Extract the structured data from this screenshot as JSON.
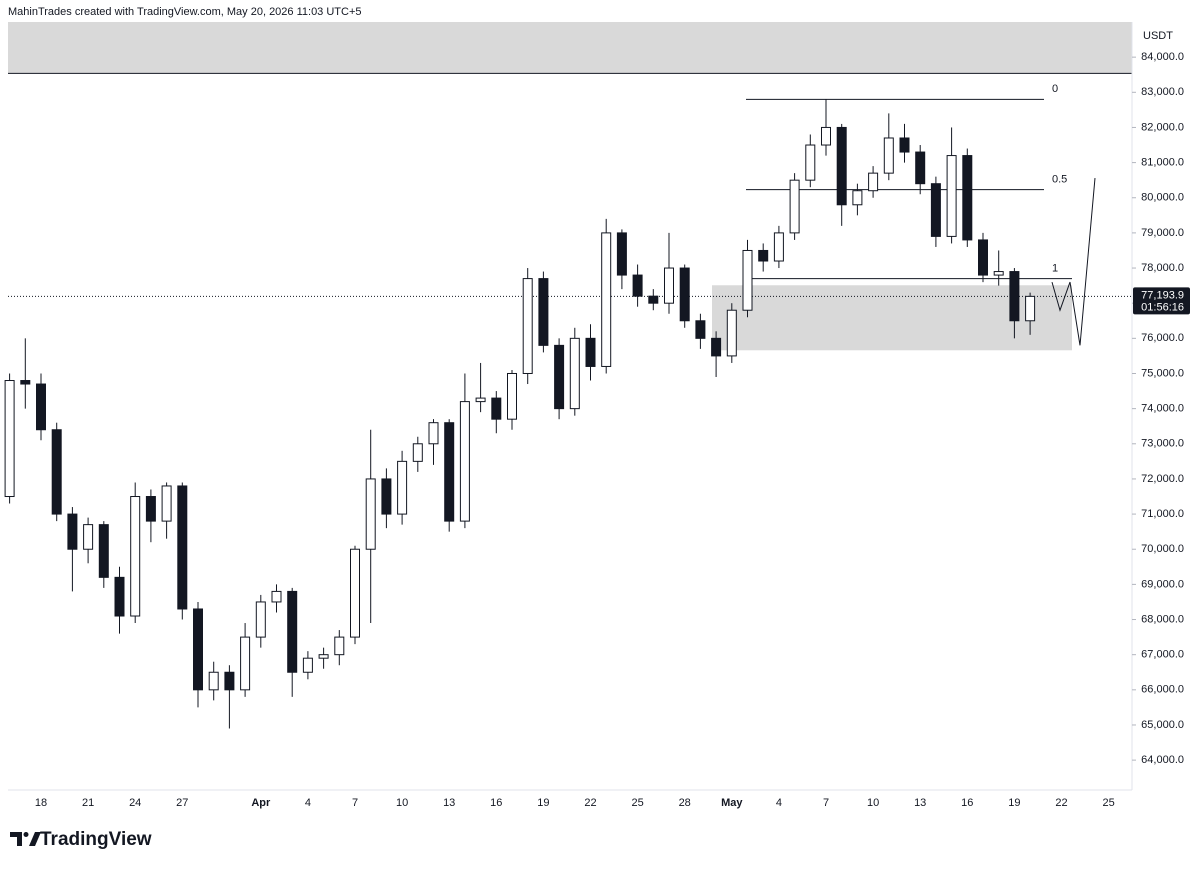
{
  "header": "MahinTrades created with TradingView.com, May 20, 2026 11:03 UTC+5",
  "footer": {
    "logo": "TradingView"
  },
  "chart_data": {
    "type": "candlestick",
    "y_axis_label": "USDT",
    "ylim": [
      63150,
      85000
    ],
    "yticks": [
      {
        "value": 64000,
        "label": "64,000.0"
      },
      {
        "value": 65000,
        "label": "65,000.0"
      },
      {
        "value": 66000,
        "label": "66,000.0"
      },
      {
        "value": 67000,
        "label": "67,000.0"
      },
      {
        "value": 68000,
        "label": "68,000.0"
      },
      {
        "value": 69000,
        "label": "69,000.0"
      },
      {
        "value": 70000,
        "label": "70,000.0"
      },
      {
        "value": 71000,
        "label": "71,000.0"
      },
      {
        "value": 72000,
        "label": "72,000.0"
      },
      {
        "value": 73000,
        "label": "73,000.0"
      },
      {
        "value": 74000,
        "label": "74,000.0"
      },
      {
        "value": 75000,
        "label": "75,000.0"
      },
      {
        "value": 76000,
        "label": "76,000.0"
      },
      {
        "value": 77000,
        "label": "77,000.0"
      },
      {
        "value": 78000,
        "label": "78,000.0"
      },
      {
        "value": 79000,
        "label": "79,000.0"
      },
      {
        "value": 80000,
        "label": "80,000.0"
      },
      {
        "value": 81000,
        "label": "81,000.0"
      },
      {
        "value": 82000,
        "label": "82,000.0"
      },
      {
        "value": 83000,
        "label": "83,000.0"
      },
      {
        "value": 84000,
        "label": "84,000.0"
      }
    ],
    "categories": [
      null,
      null,
      "18",
      null,
      null,
      "21",
      null,
      null,
      "24",
      null,
      null,
      "27",
      null,
      null,
      null,
      null,
      "Apr",
      null,
      null,
      "4",
      null,
      null,
      "7",
      null,
      null,
      "10",
      null,
      null,
      "13",
      null,
      null,
      "16",
      null,
      null,
      "19",
      null,
      null,
      "22",
      null,
      null,
      "25",
      null,
      null,
      "28",
      null,
      null,
      "May",
      null,
      null,
      "4",
      null,
      null,
      "7",
      null,
      null,
      "10",
      null,
      null,
      "13",
      null,
      null,
      "16",
      null,
      null,
      "19",
      null,
      null,
      "22",
      null,
      null,
      "25"
    ],
    "open": [
      71500,
      74800,
      74700,
      73400,
      71000,
      70000,
      70700,
      69200,
      68100,
      71500,
      70800,
      71800,
      68300,
      66000,
      66500,
      66000,
      67500,
      68500,
      68800,
      66500,
      66900,
      67000,
      67500,
      70000,
      72000,
      71000,
      72500,
      73000,
      73600,
      70800,
      74200,
      74300,
      73700,
      75000,
      77700,
      75800,
      74000,
      76000,
      75200,
      79000,
      77800,
      77200,
      77000,
      78000,
      76500,
      76000,
      75500,
      76800,
      78500,
      78200,
      79000,
      80500,
      81500,
      82000,
      79800,
      80200,
      80700,
      81700,
      81300,
      80400,
      78900,
      81200,
      78800,
      77800,
      77900,
      76500,
      null,
      null,
      null,
      null,
      null
    ],
    "high": [
      75000,
      76000,
      75000,
      73600,
      71200,
      70900,
      70800,
      69500,
      71900,
      71700,
      71900,
      71900,
      68500,
      66800,
      66700,
      67900,
      68700,
      69000,
      68900,
      67100,
      67200,
      67700,
      70100,
      73400,
      72300,
      72800,
      73200,
      73700,
      73700,
      75000,
      75300,
      74500,
      75100,
      78000,
      77900,
      76000,
      76300,
      76400,
      79400,
      79100,
      78100,
      77400,
      79000,
      78100,
      76700,
      76200,
      77000,
      78800,
      78700,
      79200,
      80700,
      81800,
      82800,
      82100,
      80400,
      80900,
      82400,
      82100,
      81500,
      80600,
      82000,
      81400,
      79000,
      78500,
      78000,
      77300,
      null,
      null,
      null,
      null,
      null
    ],
    "low": [
      71300,
      74000,
      73100,
      70800,
      68800,
      69600,
      68900,
      67600,
      67900,
      70200,
      70300,
      68000,
      65500,
      65700,
      64900,
      65800,
      67200,
      68200,
      65800,
      66300,
      66600,
      66700,
      67300,
      67900,
      70600,
      70700,
      72200,
      72400,
      70500,
      70600,
      73900,
      73300,
      73400,
      74700,
      75600,
      73700,
      73800,
      74800,
      75000,
      77400,
      76900,
      76800,
      76700,
      76300,
      75700,
      74900,
      75300,
      76600,
      77900,
      78000,
      78800,
      80300,
      81200,
      79200,
      79500,
      80000,
      80500,
      81000,
      80100,
      78600,
      78700,
      78600,
      77600,
      77500,
      76000,
      76100,
      null,
      null,
      null,
      null,
      null
    ],
    "close": [
      74800,
      74700,
      73400,
      71000,
      70000,
      70700,
      69200,
      68100,
      71500,
      70800,
      71800,
      68300,
      66000,
      66500,
      66000,
      67500,
      68500,
      68800,
      66500,
      66900,
      67000,
      67500,
      70000,
      72000,
      71000,
      72500,
      73000,
      73600,
      70800,
      74200,
      74300,
      73700,
      75000,
      77700,
      75800,
      74000,
      76000,
      75200,
      79000,
      77800,
      77200,
      77000,
      78000,
      76500,
      76000,
      75500,
      76800,
      78500,
      78200,
      79000,
      80500,
      81500,
      82000,
      79800,
      80200,
      80700,
      81700,
      81300,
      80400,
      78900,
      81200,
      78800,
      77800,
      77900,
      76500,
      77193.9,
      null,
      null,
      null,
      null,
      null
    ],
    "last_price": {
      "value": 77193.9,
      "label": "77,193.9"
    },
    "countdown": "01:56:16",
    "fib_levels": [
      {
        "value": 82800,
        "label": "0"
      },
      {
        "value": 80230,
        "label": "0.5"
      },
      {
        "value": 77700,
        "label": "1"
      }
    ],
    "zones": [
      {
        "top": 85000,
        "bottom": 83540
      },
      {
        "top": 77510,
        "bottom": 75660
      }
    ],
    "projection": [
      77600,
      76800,
      77600,
      75800,
      80560
    ]
  }
}
